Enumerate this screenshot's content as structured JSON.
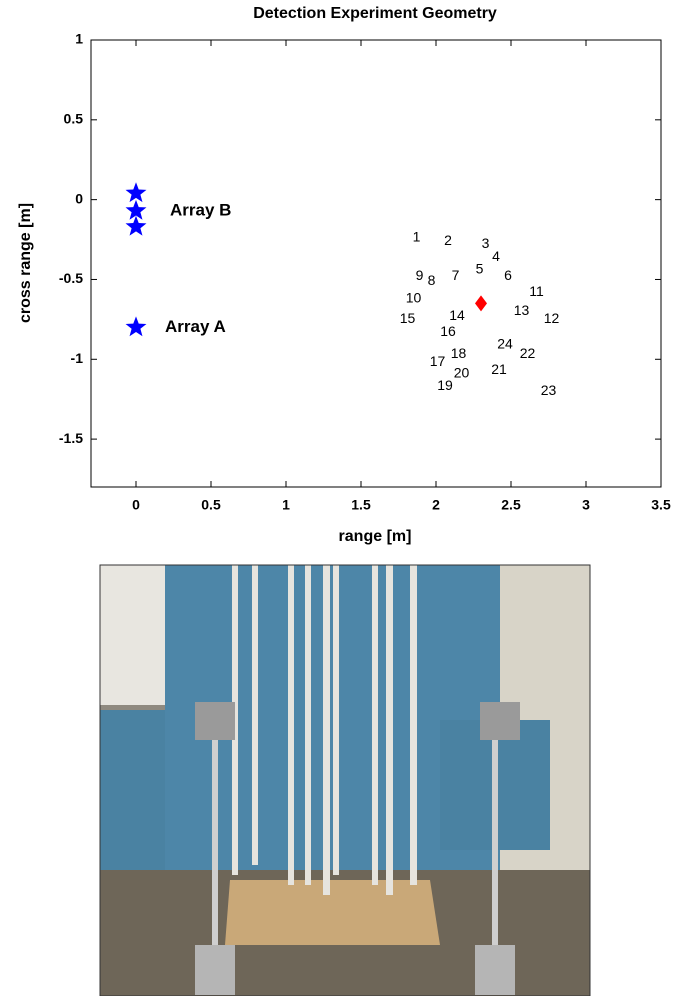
{
  "chart_data": {
    "type": "scatter",
    "title": "Detection Experiment Geometry",
    "xlabel": "range [m]",
    "ylabel": "cross range [m]",
    "xlim": [
      -0.3,
      3.5
    ],
    "ylim": [
      -1.8,
      1
    ],
    "xticks": [
      0,
      0.5,
      1,
      1.5,
      2,
      2.5,
      3,
      3.5
    ],
    "yticks": [
      1,
      0.5,
      0,
      -0.5,
      -1,
      -1.5
    ],
    "arrays": {
      "color": "#0000ff",
      "marker": "star",
      "x": [
        0,
        0,
        0,
        0
      ],
      "y": [
        0.04,
        -0.07,
        -0.17,
        -0.8
      ]
    },
    "annotations": [
      "Array B",
      "Array A"
    ],
    "target": {
      "color": "#ff0000",
      "marker": "diamond",
      "x": 2.3,
      "y": -0.65
    },
    "points": {
      "labels": [
        "1",
        "2",
        "3",
        "4",
        "5",
        "6",
        "7",
        "8",
        "9",
        "10",
        "11",
        "12",
        "13",
        "14",
        "15",
        "16",
        "17",
        "18",
        "19",
        "20",
        "21",
        "22",
        "23",
        "24"
      ],
      "x": [
        1.87,
        2.08,
        2.33,
        2.4,
        2.29,
        2.48,
        2.13,
        1.97,
        1.89,
        1.85,
        2.67,
        2.77,
        2.57,
        2.14,
        1.81,
        2.08,
        2.01,
        2.15,
        2.06,
        2.17,
        2.42,
        2.61,
        2.75,
        2.46
      ],
      "y": [
        -0.24,
        -0.26,
        -0.28,
        -0.36,
        -0.44,
        -0.48,
        -0.48,
        -0.51,
        -0.48,
        -0.62,
        -0.58,
        -0.75,
        -0.7,
        -0.73,
        -0.75,
        -0.83,
        -1.02,
        -0.97,
        -1.17,
        -1.09,
        -1.07,
        -0.97,
        -1.2,
        -0.91
      ]
    }
  }
}
